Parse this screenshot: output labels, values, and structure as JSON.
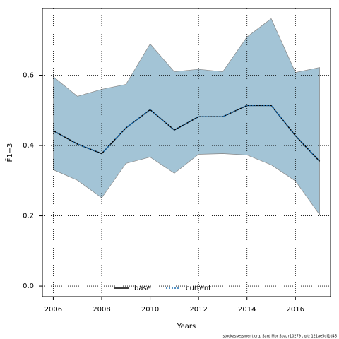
{
  "chart_data": {
    "type": "line",
    "x_label": "Years",
    "y_label": "F̄1−3",
    "footer": "stockassessment.org, Sard Mor Spa, r10279 , git: 121ae5df1d45",
    "x": [
      2006,
      2007,
      2008,
      2009,
      2010,
      2011,
      2012,
      2013,
      2014,
      2015,
      2016,
      2017
    ],
    "band": {
      "color": "#a3c4d6",
      "upper": [
        0.596,
        0.54,
        0.56,
        0.574,
        0.689,
        0.61,
        0.617,
        0.61,
        0.709,
        0.761,
        0.608,
        0.622
      ],
      "lower": [
        0.331,
        0.301,
        0.251,
        0.349,
        0.367,
        0.321,
        0.375,
        0.377,
        0.373,
        0.345,
        0.299,
        0.203
      ]
    },
    "series": [
      {
        "name": "base",
        "color": "#000000",
        "values": [
          0.442,
          0.404,
          0.377,
          0.45,
          0.502,
          0.444,
          0.482,
          0.482,
          0.514,
          0.514,
          0.428,
          0.355
        ]
      },
      {
        "name": "current",
        "color": "#1f6fb0",
        "values": [
          0.442,
          0.404,
          0.377,
          0.45,
          0.502,
          0.444,
          0.482,
          0.482,
          0.514,
          0.514,
          0.428,
          0.355
        ]
      }
    ],
    "xlim": [
      2005.55,
      2017.45
    ],
    "xticks": [
      2006,
      2008,
      2010,
      2012,
      2014,
      2016
    ],
    "ylim": [
      -0.03,
      0.79
    ],
    "yticks": [
      {
        "value": 0,
        "label": "0.0"
      },
      0.2,
      0.4,
      0.6
    ],
    "grid": true,
    "legend": "bottom"
  }
}
